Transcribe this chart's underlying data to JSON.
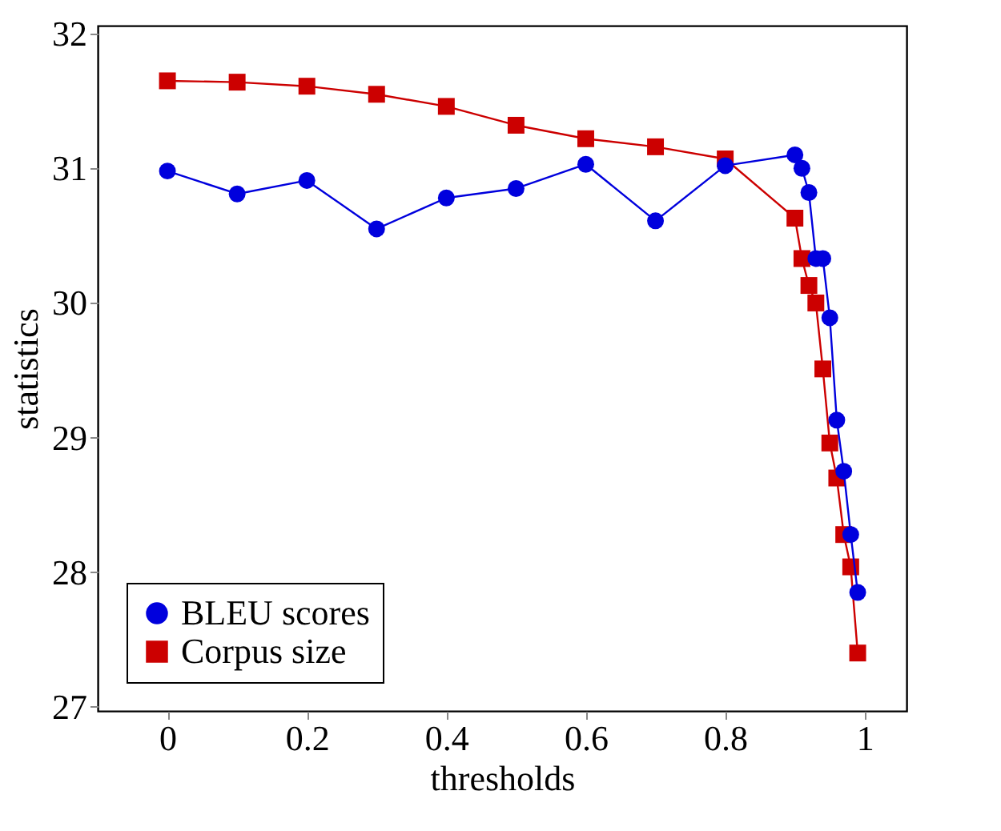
{
  "chart_data": {
    "type": "line",
    "xlabel": "thresholds",
    "ylabel": "statistics",
    "xlim": [
      -0.1,
      1.06
    ],
    "xticks": [
      0,
      0.2,
      0.4,
      0.6,
      0.8,
      1
    ],
    "ylim": [
      26.97,
      32.06
    ],
    "yticks": [
      27,
      28,
      29,
      30,
      31,
      32
    ],
    "grid": false,
    "legend": "bottom left",
    "line_style": "solid",
    "series": [
      {
        "name": "BLEU scores",
        "color": "#0000dd",
        "marker": "circle",
        "x": [
          0,
          0.1,
          0.2,
          0.3,
          0.4,
          0.5,
          0.6,
          0.7,
          0.8,
          0.9,
          0.91,
          0.92,
          0.93,
          0.94,
          0.95,
          0.96,
          0.97,
          0.98,
          0.99
        ],
        "values": [
          30.98,
          30.81,
          30.91,
          30.55,
          30.78,
          30.85,
          31.03,
          30.61,
          31.02,
          31.1,
          31.0,
          30.82,
          30.33,
          30.33,
          29.89,
          29.13,
          28.75,
          28.28,
          27.85
        ]
      },
      {
        "name": "Corpus size",
        "color": "#cc0000",
        "marker": "square",
        "x": [
          0,
          0.1,
          0.2,
          0.3,
          0.4,
          0.5,
          0.6,
          0.7,
          0.8,
          0.9,
          0.91,
          0.92,
          0.93,
          0.94,
          0.95,
          0.96,
          0.97,
          0.98,
          0.99
        ],
        "values": [
          31.65,
          31.64,
          31.61,
          31.55,
          31.46,
          31.32,
          31.22,
          31.16,
          31.07,
          30.63,
          30.33,
          30.13,
          30.0,
          29.51,
          28.96,
          28.7,
          28.28,
          28.04,
          27.4
        ]
      }
    ]
  }
}
